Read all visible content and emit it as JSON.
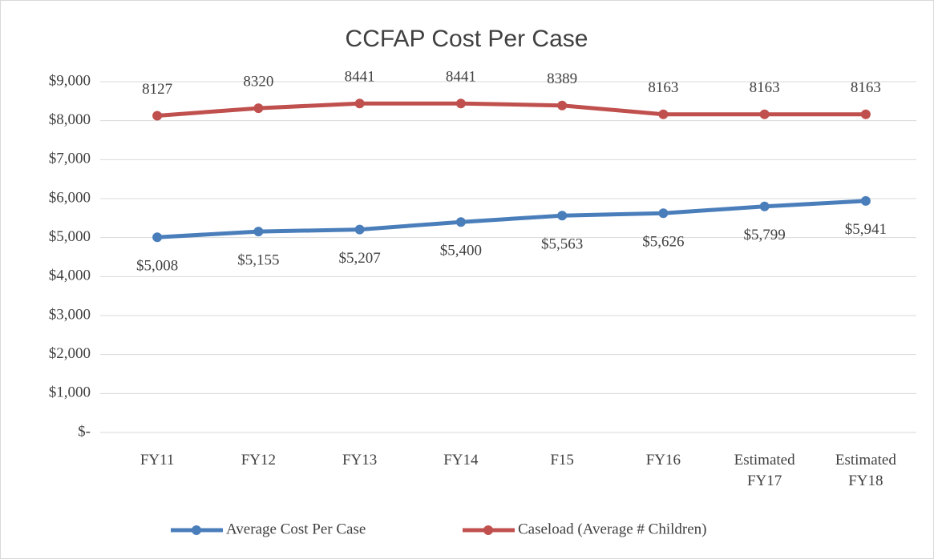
{
  "chart_data": {
    "type": "line",
    "title": "CCFAP Cost Per Case",
    "categories": [
      "FY11",
      "FY12",
      "FY13",
      "FY14",
      "F15",
      "FY16",
      "Estimated FY17",
      "Estimated FY18"
    ],
    "series": [
      {
        "name": "Average Cost Per Case",
        "color": "#4a7ebb",
        "values": [
          5008,
          5155,
          5207,
          5400,
          5563,
          5626,
          5799,
          5941
        ],
        "value_labels": [
          "$5,008",
          "$5,155",
          "$5,207",
          "$5,400",
          "$5,563",
          "$5,626",
          "$5,799",
          "$5,941"
        ]
      },
      {
        "name": "Caseload (Average # Children)",
        "color": "#c0504d",
        "values": [
          8127,
          8320,
          8441,
          8441,
          8389,
          8163,
          8163,
          8163
        ]
      }
    ],
    "ylim": [
      0,
      9000
    ],
    "yticks": [
      {
        "value": 0,
        "label": "$-"
      },
      {
        "value": 1000,
        "label": "$1,000"
      },
      {
        "value": 2000,
        "label": "$2,000"
      },
      {
        "value": 3000,
        "label": "$3,000"
      },
      {
        "value": 4000,
        "label": "$4,000"
      },
      {
        "value": 5000,
        "label": "$5,000"
      },
      {
        "value": 6000,
        "label": "$6,000"
      },
      {
        "value": 7000,
        "label": "$7,000"
      },
      {
        "value": 8000,
        "label": "$8,000"
      },
      {
        "value": 9000,
        "label": "$9,000"
      }
    ],
    "grid": true,
    "legend": "bottom"
  }
}
